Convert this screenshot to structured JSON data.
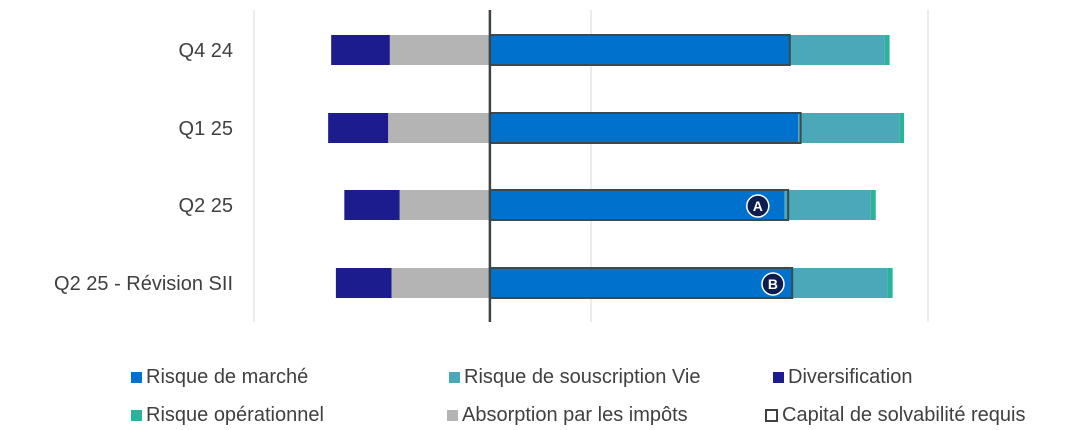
{
  "chart_data": {
    "type": "bar",
    "orientation": "horizontal",
    "stacked": true,
    "categories": [
      "Q4 24",
      "Q1 25",
      "Q2 25",
      "Q2 25 - Révision SII"
    ],
    "series": [
      {
        "name": "Absorption par les impôts",
        "color": "#B4B4B4",
        "values": [
          -297,
          -302,
          -268,
          -292
        ]
      },
      {
        "name": "Diversification",
        "color": "#1C1C8E",
        "values": [
          -174,
          -178,
          -164,
          -165
        ]
      },
      {
        "name": "Risque de marché",
        "color": "#0072CE",
        "values": [
          890,
          915,
          874,
          897
        ]
      },
      {
        "name": "Risque de souscription Vie",
        "color": "#4BA8B8",
        "values": [
          282,
          300,
          256,
          282
        ]
      },
      {
        "name": "Risque opérationnel",
        "color": "#2BB39A",
        "values": [
          14,
          14,
          15,
          16
        ]
      }
    ],
    "scr_outline": {
      "name": "Capital de solvabilité requis",
      "values": [
        890,
        922,
        885,
        897
      ]
    },
    "markers": [
      {
        "category": "Q2 25",
        "label": "A",
        "x": 795
      },
      {
        "category": "Q2 25 - Révision SII",
        "label": "B",
        "x": 840
      }
    ],
    "legend": {
      "placement": "bottom",
      "items": [
        {
          "label": "Risque de marché",
          "color": "#0072CE",
          "style": "filled"
        },
        {
          "label": "Risque de souscription Vie",
          "color": "#4BA8B8",
          "style": "filled"
        },
        {
          "label": "Diversification",
          "color": "#1C1C8E",
          "style": "filled"
        },
        {
          "label": "Risque opérationnel",
          "color": "#2BB39A",
          "style": "filled"
        },
        {
          "label": "Absorption par les impôts",
          "color": "#B4B4B4",
          "style": "filled"
        },
        {
          "label": "Capital de solvabilité requis",
          "color": "#404040",
          "style": "outline"
        }
      ]
    },
    "xlim": [
      -700,
      1300
    ],
    "gridlines": [
      -700,
      300,
      1300
    ],
    "grid": true,
    "zero_axis": true,
    "title": "",
    "xlabel": "",
    "ylabel": ""
  }
}
